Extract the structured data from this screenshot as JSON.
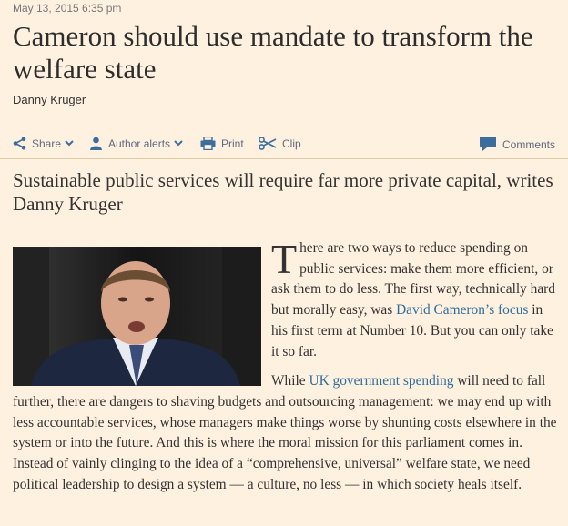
{
  "article": {
    "timestamp": "May 13, 2015 6:35 pm",
    "headline": "Cameron should use mandate to transform the welfare state",
    "author": "Danny Kruger",
    "standfirst": "Sustainable public services will require far more private capital, writes Danny Kruger"
  },
  "toolbar": {
    "share_label": "Share",
    "author_alerts_label": "Author alerts",
    "print_label": "Print",
    "clip_label": "Clip",
    "comments_label": "Comments"
  },
  "body": {
    "p1_dropcap": "T",
    "p1_text_a": "here are two ways to reduce spending on public services: make them more efficient, or ask them to do less. The first way, technically hard but morally easy, was ",
    "p1_link": "David Cameron’s focus",
    "p1_text_b": " in his first term at Number 10. But you can only take it so far.",
    "p2_text_a": "While ",
    "p2_link": "UK government spending",
    "p2_text_b": " will need to fall further, there are dangers to shaving budgets and outsourcing management: we may end up with less accountable services, whose managers make things worse by shunting costs elsewhere in the system or into the future. And this is where the moral mission for this parliament comes in. Instead of vainly clinging to the idea of a “comprehensive, universal” welfare state, we need political leadership to design a system — a culture, no less — in which society heals itself."
  },
  "colors": {
    "background": "#fff1e0",
    "link": "#2e6e9e",
    "toolbar_icon": "#3d6d9e"
  },
  "icons": [
    "share-icon",
    "chevron-down-icon",
    "person-icon",
    "printer-icon",
    "scissors-icon",
    "comment-bubble-icon"
  ]
}
